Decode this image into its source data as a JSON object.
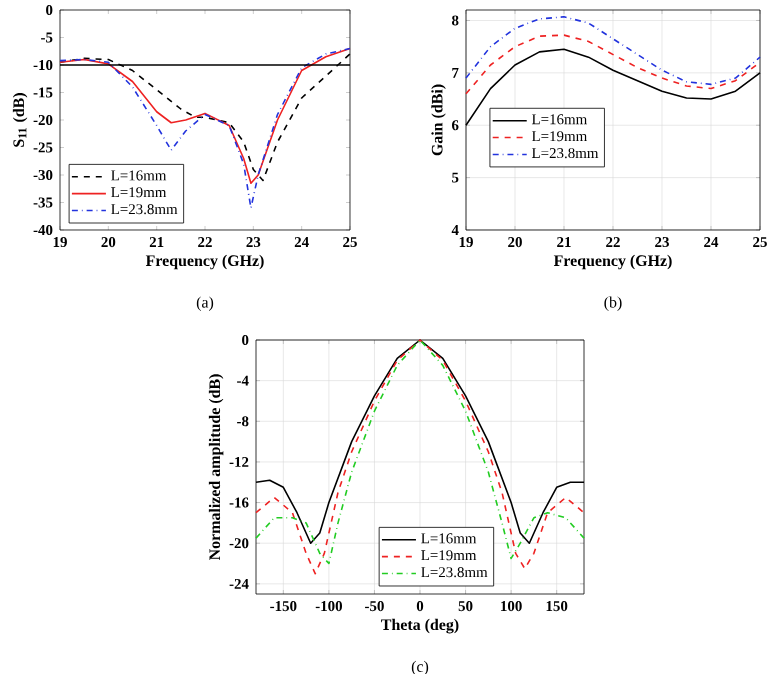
{
  "chart_data": [
    {
      "type": "line",
      "xlabel": "Frequency (GHz)",
      "ylabel": "S$_{11}$ (dB)",
      "annotations": [
        "(a)"
      ],
      "xlim": [
        19,
        25
      ],
      "xticks": [
        19,
        20,
        21,
        22,
        23,
        24,
        25
      ],
      "ylim": [
        -40,
        0
      ],
      "yticks": [
        -40,
        -35,
        -30,
        -25,
        -20,
        -15,
        -10,
        -5,
        0
      ],
      "grid": false,
      "legend": "bottom left",
      "ref_lines": [
        {
          "axis": "y",
          "value": -10,
          "color": "#000000",
          "line_style": "solid"
        }
      ],
      "series": [
        {
          "name": "L=16mm",
          "color": "#000000",
          "line_style": "dashed",
          "x": [
            19,
            19.5,
            20,
            20.5,
            21,
            21.5,
            21.8,
            22,
            22.5,
            22.8,
            23,
            23.2,
            23.5,
            24,
            24.5,
            25
          ],
          "values": [
            -9.5,
            -8.8,
            -9,
            -11,
            -14.5,
            -18,
            -19.5,
            -19.5,
            -20.5,
            -24,
            -29,
            -31,
            -24,
            -16,
            -12,
            -8
          ]
        },
        {
          "name": "L=19mm",
          "color": "#ee2222",
          "line_style": "solid",
          "x": [
            19,
            19.5,
            20,
            20.5,
            21,
            21.3,
            21.6,
            22,
            22.5,
            22.8,
            22.95,
            23.1,
            23.5,
            24,
            24.5,
            25
          ],
          "values": [
            -9.5,
            -9,
            -9.8,
            -13,
            -18.5,
            -20.5,
            -20,
            -18.8,
            -21,
            -27,
            -31.5,
            -30,
            -20,
            -11,
            -8.5,
            -7
          ]
        },
        {
          "name": "L=23.8mm",
          "color": "#2233dd",
          "line_style": "dashdot",
          "x": [
            19,
            19.5,
            20,
            20.5,
            21,
            21.3,
            21.6,
            22,
            22.5,
            22.8,
            22.95,
            23.1,
            23.5,
            24,
            24.5,
            25
          ],
          "values": [
            -9.2,
            -9,
            -9.5,
            -14,
            -21,
            -25.5,
            -22,
            -19,
            -21,
            -28,
            -36,
            -30,
            -19,
            -10.5,
            -8,
            -7
          ]
        }
      ]
    },
    {
      "type": "line",
      "xlabel": "Frequency (GHz)",
      "ylabel": "Gain (dBi)",
      "annotations": [
        "(b)"
      ],
      "xlim": [
        19,
        25
      ],
      "xticks": [
        19,
        20,
        21,
        22,
        23,
        24,
        25
      ],
      "ylim": [
        4,
        8.2
      ],
      "yticks": [
        4,
        5,
        6,
        7,
        8
      ],
      "grid": true,
      "legend": "center left",
      "series": [
        {
          "name": "L=16mm",
          "color": "#000000",
          "line_style": "solid",
          "x": [
            19,
            19.5,
            20,
            20.5,
            21,
            21.5,
            22,
            22.5,
            23,
            23.5,
            24,
            24.5,
            25
          ],
          "values": [
            6.0,
            6.7,
            7.15,
            7.4,
            7.45,
            7.3,
            7.05,
            6.85,
            6.65,
            6.52,
            6.5,
            6.65,
            7.0
          ]
        },
        {
          "name": "L=19mm",
          "color": "#ee2222",
          "line_style": "dashed",
          "x": [
            19,
            19.5,
            20,
            20.5,
            21,
            21.5,
            22,
            22.5,
            23,
            23.5,
            24,
            24.5,
            25
          ],
          "values": [
            6.6,
            7.15,
            7.5,
            7.7,
            7.72,
            7.6,
            7.35,
            7.1,
            6.9,
            6.75,
            6.7,
            6.85,
            7.2
          ]
        },
        {
          "name": "L=23.8mm",
          "color": "#2233dd",
          "line_style": "dashdot",
          "x": [
            19,
            19.5,
            20,
            20.5,
            21,
            21.5,
            22,
            22.5,
            23,
            23.5,
            24,
            24.5,
            25
          ],
          "values": [
            6.9,
            7.5,
            7.85,
            8.03,
            8.07,
            7.95,
            7.65,
            7.35,
            7.05,
            6.83,
            6.78,
            6.9,
            7.3
          ]
        }
      ]
    },
    {
      "type": "line",
      "xlabel": "Theta (deg)",
      "ylabel": "Normalized amplitude (dB)",
      "annotations": [
        "(c)"
      ],
      "xlim": [
        -180,
        180
      ],
      "xticks": [
        -150,
        -100,
        -50,
        0,
        50,
        100,
        150
      ],
      "ylim": [
        -25,
        0
      ],
      "yticks": [
        -24,
        -20,
        -16,
        -12,
        -8,
        -4,
        0
      ],
      "grid": true,
      "legend": "bottom",
      "series": [
        {
          "name": "L=16mm",
          "color": "#000000",
          "line_style": "solid",
          "x": [
            -180,
            -165,
            -150,
            -135,
            -120,
            -110,
            -100,
            -75,
            -50,
            -25,
            0,
            25,
            50,
            75,
            100,
            110,
            120,
            135,
            150,
            165,
            180
          ],
          "values": [
            -14,
            -13.8,
            -14.5,
            -17,
            -20,
            -19,
            -16,
            -10,
            -5.5,
            -1.8,
            0,
            -1.8,
            -5.5,
            -10,
            -16,
            -19,
            -20,
            -17,
            -14.5,
            -14,
            -14
          ]
        },
        {
          "name": "L=19mm",
          "color": "#ee2222",
          "line_style": "dashed",
          "x": [
            -180,
            -160,
            -140,
            -125,
            -115,
            -105,
            -90,
            -75,
            -50,
            -25,
            0,
            25,
            50,
            75,
            90,
            105,
            115,
            125,
            140,
            160,
            180
          ],
          "values": [
            -17,
            -15.5,
            -17,
            -21,
            -23,
            -21,
            -15,
            -11,
            -6,
            -2,
            0,
            -2,
            -6,
            -11,
            -15,
            -21,
            -22.5,
            -21,
            -17,
            -15.5,
            -17
          ]
        },
        {
          "name": "L=23.8mm",
          "color": "#22cc22",
          "line_style": "dashdot",
          "x": [
            -180,
            -160,
            -140,
            -125,
            -110,
            -100,
            -90,
            -75,
            -50,
            -25,
            0,
            25,
            50,
            75,
            90,
            100,
            110,
            125,
            140,
            160,
            180
          ],
          "values": [
            -19.5,
            -17.5,
            -17.5,
            -18,
            -21,
            -22,
            -18,
            -13,
            -7,
            -2.5,
            0,
            -2.5,
            -7,
            -13,
            -18,
            -21.5,
            -20,
            -17.5,
            -17,
            -17.5,
            -19.5
          ]
        }
      ]
    }
  ]
}
